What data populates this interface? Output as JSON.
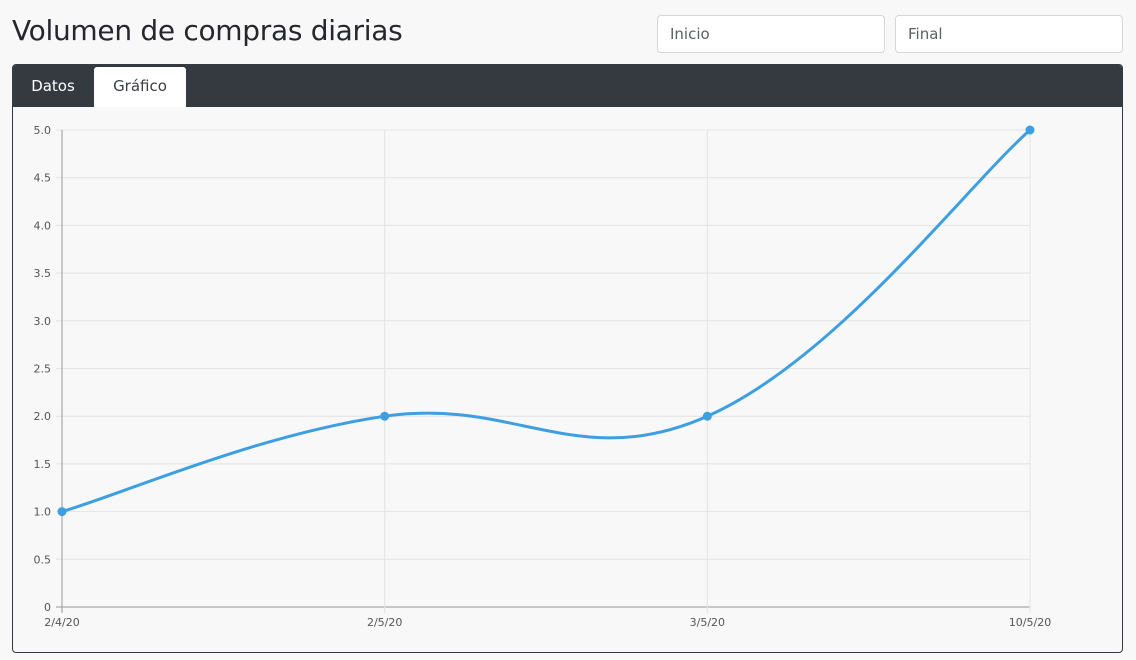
{
  "header": {
    "title": "Volumen de compras diarias",
    "start_placeholder": "Inicio",
    "end_placeholder": "Final"
  },
  "tabs": [
    {
      "label": "Datos",
      "active": false
    },
    {
      "label": "Gráfico",
      "active": true
    }
  ],
  "colors": {
    "line": "#3d9fe2",
    "tabbar": "#343a40",
    "grid": "#e3e3e3"
  },
  "chart_data": {
    "type": "line",
    "title": "",
    "xlabel": "",
    "ylabel": "",
    "categories": [
      "2/4/20",
      "2/5/20",
      "3/5/20",
      "10/5/20"
    ],
    "series": [
      {
        "values": [
          1,
          2,
          2,
          5
        ]
      }
    ],
    "ylim": [
      0,
      5
    ],
    "yticks": [
      "0",
      "0.5",
      "1.0",
      "1.5",
      "2.0",
      "2.5",
      "3.0",
      "3.5",
      "4.0",
      "4.5",
      "5.0"
    ],
    "grid": true,
    "legend": "none",
    "smooth": true
  }
}
